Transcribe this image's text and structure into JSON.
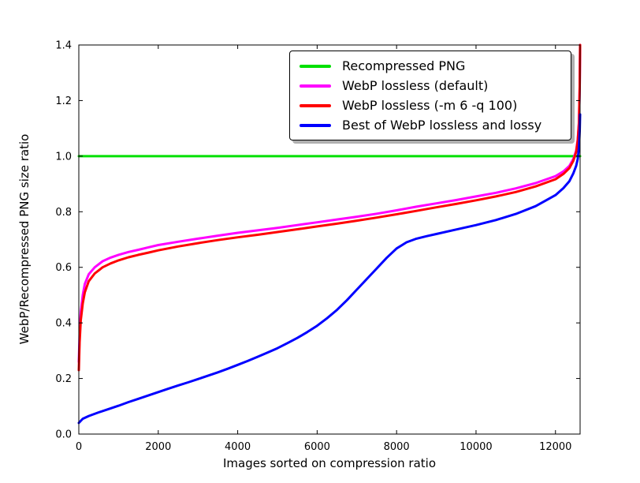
{
  "chart_data": {
    "type": "line",
    "title": "",
    "xlabel": "Images sorted on compression ratio",
    "ylabel": "WebP/Recompressed PNG size ratio",
    "xlim": [
      0,
      12620
    ],
    "ylim": [
      0.0,
      1.4
    ],
    "grid": false,
    "legend_position": "upper center",
    "xticks": [
      0,
      2000,
      4000,
      6000,
      8000,
      10000,
      12000
    ],
    "xtick_labels": [
      "0",
      "2000",
      "4000",
      "6000",
      "8000",
      "10000",
      "12000"
    ],
    "yticks": [
      0.0,
      0.2,
      0.4,
      0.6,
      0.8,
      1.0,
      1.2,
      1.4
    ],
    "ytick_labels": [
      "0.0",
      "0.2",
      "0.4",
      "0.6",
      "0.8",
      "1.0",
      "1.2",
      "1.4"
    ],
    "series": [
      {
        "name": "Recompressed PNG",
        "color": "#00e000",
        "x": [
          0,
          12620
        ],
        "y": [
          1.0,
          1.0
        ]
      },
      {
        "name": "WebP lossless (default)",
        "color": "#ff00ff",
        "x": [
          0,
          20,
          50,
          100,
          150,
          250,
          400,
          600,
          800,
          1000,
          1250,
          1500,
          1750,
          2000,
          2500,
          3000,
          3500,
          4000,
          4500,
          5000,
          5500,
          6000,
          6500,
          7000,
          7500,
          8000,
          8500,
          9000,
          9500,
          10000,
          10500,
          11000,
          11500,
          12000,
          12200,
          12350,
          12450,
          12520,
          12560,
          12590,
          12610,
          12620
        ],
        "y": [
          0.26,
          0.36,
          0.44,
          0.5,
          0.54,
          0.575,
          0.6,
          0.622,
          0.635,
          0.645,
          0.655,
          0.663,
          0.672,
          0.68,
          0.692,
          0.703,
          0.714,
          0.724,
          0.733,
          0.742,
          0.752,
          0.762,
          0.772,
          0.782,
          0.793,
          0.805,
          0.818,
          0.83,
          0.842,
          0.855,
          0.868,
          0.884,
          0.903,
          0.928,
          0.945,
          0.965,
          0.99,
          1.02,
          1.06,
          1.12,
          1.25,
          1.4
        ]
      },
      {
        "name": "WebP lossless (-m 6 -q 100)",
        "color": "#ff0000",
        "x": [
          0,
          20,
          50,
          100,
          150,
          250,
          400,
          600,
          800,
          1000,
          1250,
          1500,
          1750,
          2000,
          2500,
          3000,
          3500,
          4000,
          4500,
          5000,
          5500,
          6000,
          6500,
          7000,
          7500,
          8000,
          8500,
          9000,
          9500,
          10000,
          10500,
          11000,
          11500,
          12000,
          12200,
          12350,
          12450,
          12520,
          12560,
          12590,
          12610,
          12620
        ],
        "y": [
          0.23,
          0.33,
          0.41,
          0.47,
          0.51,
          0.55,
          0.578,
          0.6,
          0.614,
          0.625,
          0.636,
          0.645,
          0.653,
          0.661,
          0.675,
          0.687,
          0.698,
          0.708,
          0.717,
          0.727,
          0.737,
          0.747,
          0.757,
          0.768,
          0.779,
          0.791,
          0.803,
          0.816,
          0.828,
          0.841,
          0.855,
          0.871,
          0.891,
          0.917,
          0.936,
          0.957,
          0.983,
          1.015,
          1.055,
          1.115,
          1.25,
          1.4
        ]
      },
      {
        "name": "Best of WebP lossless and lossy",
        "color": "#0000ff",
        "x": [
          0,
          100,
          250,
          500,
          750,
          1000,
          1250,
          1500,
          1750,
          2000,
          2250,
          2500,
          2750,
          3000,
          3250,
          3500,
          3750,
          4000,
          4250,
          4500,
          4750,
          5000,
          5250,
          5500,
          5750,
          6000,
          6250,
          6500,
          6750,
          7000,
          7250,
          7500,
          7750,
          8000,
          8250,
          8500,
          8750,
          9000,
          9500,
          10000,
          10500,
          11000,
          11500,
          12000,
          12200,
          12350,
          12450,
          12520,
          12560,
          12590,
          12610,
          12620
        ],
        "y": [
          0.04,
          0.055,
          0.065,
          0.078,
          0.09,
          0.102,
          0.115,
          0.127,
          0.139,
          0.151,
          0.163,
          0.175,
          0.186,
          0.198,
          0.21,
          0.222,
          0.235,
          0.249,
          0.263,
          0.278,
          0.293,
          0.309,
          0.327,
          0.346,
          0.367,
          0.39,
          0.417,
          0.447,
          0.482,
          0.52,
          0.558,
          0.596,
          0.634,
          0.668,
          0.69,
          0.703,
          0.712,
          0.72,
          0.736,
          0.752,
          0.77,
          0.792,
          0.82,
          0.86,
          0.885,
          0.91,
          0.938,
          0.965,
          0.99,
          1.03,
          1.09,
          1.15
        ]
      }
    ]
  }
}
